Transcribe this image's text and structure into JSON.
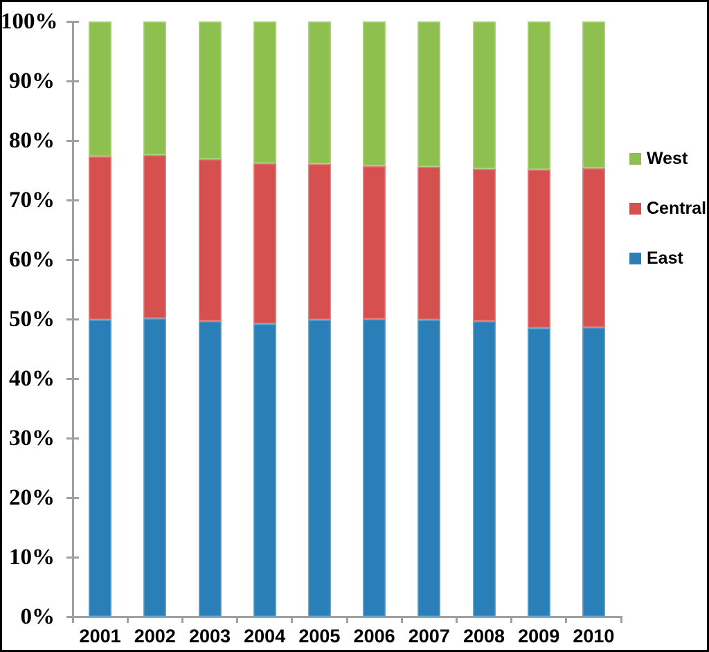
{
  "chart_data": {
    "type": "bar",
    "subtype": "stacked-100-percent",
    "title": "",
    "xlabel": "",
    "ylabel": "",
    "grid": false,
    "ylim": [
      0,
      100
    ],
    "y_tick_labels": [
      "0%",
      "10%",
      "20%",
      "30%",
      "40%",
      "50%",
      "60%",
      "70%",
      "80%",
      "90%",
      "100%"
    ],
    "categories": [
      "2001",
      "2002",
      "2003",
      "2004",
      "2005",
      "2006",
      "2007",
      "2008",
      "2009",
      "2010"
    ],
    "series": [
      {
        "name": "East",
        "color": "#2a7fb8",
        "values": [
          49.9,
          50.1,
          49.7,
          49.2,
          49.9,
          50.0,
          49.9,
          49.7,
          48.5,
          48.6
        ]
      },
      {
        "name": "Central",
        "color": "#d5504e",
        "values": [
          27.4,
          27.5,
          27.2,
          27.0,
          26.1,
          25.7,
          25.7,
          25.5,
          26.6,
          26.7
        ]
      },
      {
        "name": "West",
        "color": "#8dc04f",
        "values": [
          22.7,
          22.4,
          23.1,
          23.8,
          24.0,
          24.3,
          24.4,
          24.8,
          24.9,
          24.7
        ]
      }
    ],
    "legend": {
      "position": "right",
      "entries": [
        "West",
        "Central",
        "East"
      ]
    },
    "colors": {
      "axis": "#a0a0a0",
      "text": "#000000",
      "background": "#ffffff",
      "frame_border": "#000000"
    }
  }
}
